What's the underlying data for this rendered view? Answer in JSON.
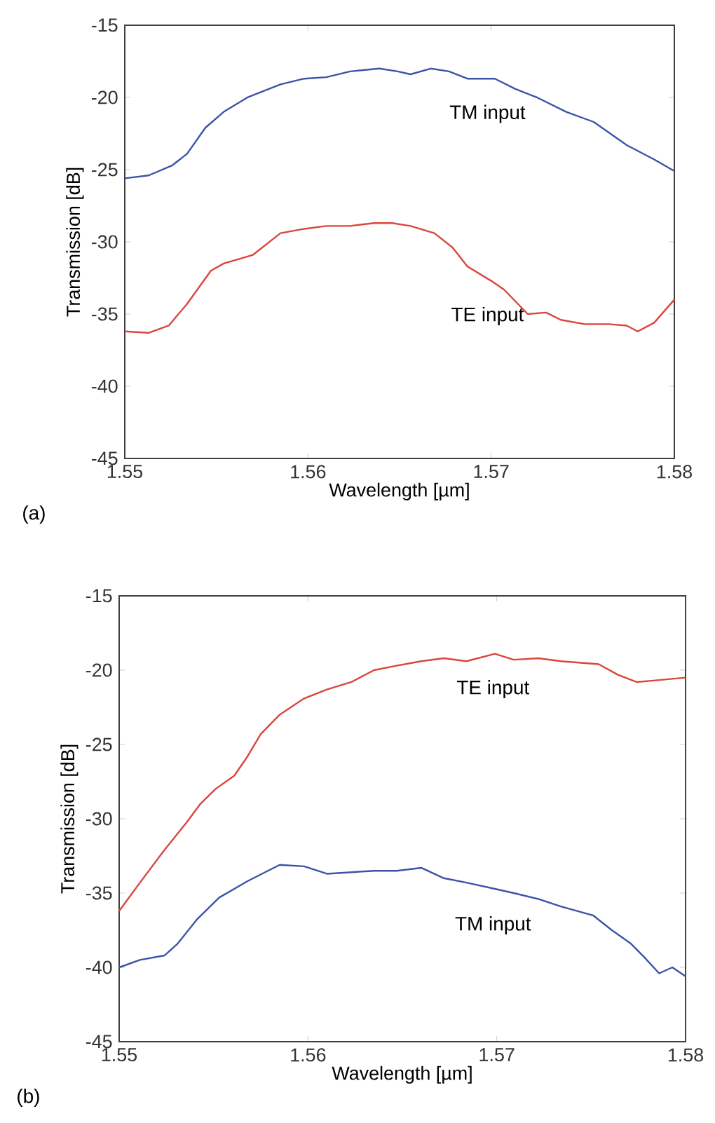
{
  "chart_data": [
    {
      "type": "line",
      "xlabel": "Wavelength [µm]",
      "ylabel": "Transmission [dB]",
      "annotations": [
        "(a)"
      ],
      "xlim": [
        1.55,
        1.58
      ],
      "ylim": [
        -45,
        -15
      ],
      "xticks": [
        1.55,
        1.56,
        1.57,
        1.58
      ],
      "yticks": [
        -45,
        -40,
        -35,
        -30,
        -25,
        -20,
        -15
      ],
      "grid": false,
      "legend": false,
      "series": [
        {
          "name": "TM input",
          "color": "#3a55a8",
          "x": [
            1.55,
            1.5513,
            1.5526,
            1.5534,
            1.5544,
            1.5554,
            1.5567,
            1.5585,
            1.5598,
            1.561,
            1.5623,
            1.5639,
            1.5649,
            1.5656,
            1.5667,
            1.5677,
            1.5687,
            1.5702,
            1.5713,
            1.5725,
            1.5741,
            1.5756,
            1.5774,
            1.5789,
            1.58
          ],
          "values": [
            -25.6,
            -25.4,
            -24.7,
            -23.9,
            -22.1,
            -21.0,
            -20.0,
            -19.1,
            -18.7,
            -18.6,
            -18.2,
            -18.0,
            -18.2,
            -18.4,
            -18.0,
            -18.2,
            -18.7,
            -18.7,
            -19.4,
            -20.0,
            -21.0,
            -21.7,
            -23.3,
            -24.3,
            -25.1
          ]
        },
        {
          "name": "TE input",
          "color": "#d9463d",
          "x": [
            1.55,
            1.5513,
            1.5524,
            1.5534,
            1.5547,
            1.5554,
            1.557,
            1.5585,
            1.5598,
            1.561,
            1.5623,
            1.5636,
            1.5646,
            1.5656,
            1.5669,
            1.5679,
            1.5687,
            1.57,
            1.5707,
            1.572,
            1.573,
            1.5738,
            1.5751,
            1.5764,
            1.5774,
            1.578,
            1.5789,
            1.58
          ],
          "values": [
            -36.2,
            -36.3,
            -35.8,
            -34.3,
            -32.0,
            -31.5,
            -30.9,
            -29.4,
            -29.1,
            -28.9,
            -28.9,
            -28.7,
            -28.7,
            -28.9,
            -29.4,
            -30.4,
            -31.7,
            -32.7,
            -33.3,
            -35.0,
            -34.9,
            -35.4,
            -35.7,
            -35.7,
            -35.8,
            -36.2,
            -35.6,
            -34.0
          ]
        }
      ]
    },
    {
      "type": "line",
      "xlabel": "Wavelength [µm]",
      "ylabel": "Transmission [dB]",
      "annotations": [
        "(b)"
      ],
      "xlim": [
        1.55,
        1.58
      ],
      "ylim": [
        -45,
        -15
      ],
      "xticks": [
        1.55,
        1.56,
        1.57,
        1.58
      ],
      "yticks": [
        -45,
        -40,
        -35,
        -30,
        -25,
        -20,
        -15
      ],
      "grid": false,
      "legend": false,
      "series": [
        {
          "name": "TE input",
          "color": "#d9463d",
          "x": [
            1.55,
            1.5511,
            1.5524,
            1.5536,
            1.5543,
            1.5551,
            1.5561,
            1.5568,
            1.5575,
            1.5585,
            1.5598,
            1.561,
            1.5623,
            1.5635,
            1.5647,
            1.566,
            1.5672,
            1.5684,
            1.5699,
            1.5709,
            1.5722,
            1.5734,
            1.5754,
            1.5764,
            1.5774,
            1.5783,
            1.58
          ],
          "values": [
            -36.2,
            -34.3,
            -32.1,
            -30.2,
            -29.0,
            -28.0,
            -27.1,
            -25.8,
            -24.3,
            -23.0,
            -21.9,
            -21.3,
            -20.8,
            -20.0,
            -19.7,
            -19.4,
            -19.2,
            -19.4,
            -18.9,
            -19.3,
            -19.2,
            -19.4,
            -19.6,
            -20.3,
            -20.8,
            -20.7,
            -20.5
          ]
        },
        {
          "name": "TM input",
          "color": "#3a55a8",
          "x": [
            1.55,
            1.5511,
            1.5524,
            1.5531,
            1.5541,
            1.5553,
            1.5568,
            1.5585,
            1.5598,
            1.561,
            1.5635,
            1.5647,
            1.566,
            1.5672,
            1.5684,
            1.5702,
            1.5709,
            1.5722,
            1.5734,
            1.5751,
            1.5761,
            1.5771,
            1.5778,
            1.5786,
            1.5793,
            1.58
          ],
          "values": [
            -40.0,
            -39.5,
            -39.2,
            -38.4,
            -36.8,
            -35.3,
            -34.2,
            -33.1,
            -33.2,
            -33.7,
            -33.5,
            -33.5,
            -33.3,
            -34.0,
            -34.3,
            -34.8,
            -35.0,
            -35.4,
            -35.9,
            -36.5,
            -37.5,
            -38.4,
            -39.3,
            -40.4,
            -40.0,
            -40.6
          ]
        }
      ]
    }
  ]
}
